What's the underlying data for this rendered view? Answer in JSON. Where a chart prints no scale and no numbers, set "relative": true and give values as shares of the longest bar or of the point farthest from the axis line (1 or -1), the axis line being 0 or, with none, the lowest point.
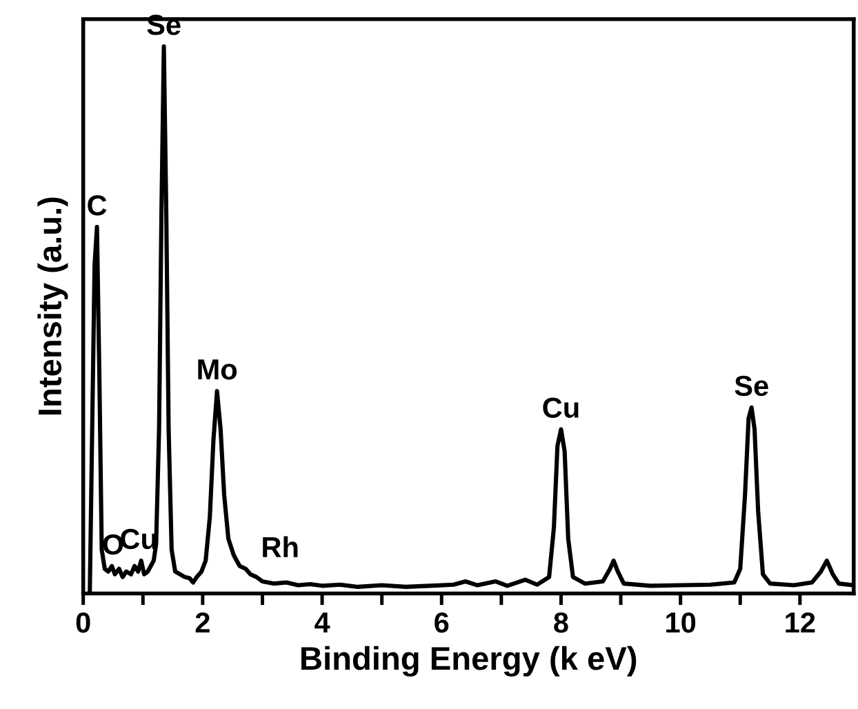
{
  "chart_data": {
    "type": "line",
    "relative": true,
    "xlabel": "Binding Energy (k eV)",
    "ylabel": "Intensity (a.u.)",
    "xlim": [
      0,
      12.9
    ],
    "xticks": [
      0,
      {
        "value": 1,
        "label": null
      },
      2,
      {
        "value": 3,
        "label": null
      },
      4,
      {
        "value": 5,
        "label": null
      },
      6,
      {
        "value": 7,
        "label": null
      },
      8,
      {
        "value": 9,
        "label": null
      },
      10,
      {
        "value": 11,
        "label": null
      },
      12
    ],
    "tick_labels": "x",
    "grid": false,
    "legend": false,
    "marker": "none",
    "line_style": "solid",
    "series": [
      {
        "color": "#000000",
        "x": [
          0.11,
          0.15,
          0.19,
          0.23,
          0.27,
          0.31,
          0.36,
          0.42,
          0.48,
          0.53,
          0.6,
          0.66,
          0.72,
          0.8,
          0.86,
          0.92,
          0.97,
          1.02,
          1.08,
          1.13,
          1.18,
          1.22,
          1.27,
          1.31,
          1.35,
          1.39,
          1.43,
          1.48,
          1.54,
          1.62,
          1.7,
          1.78,
          1.84,
          1.9,
          1.98,
          2.05,
          2.12,
          2.18,
          2.24,
          2.3,
          2.36,
          2.43,
          2.52,
          2.62,
          2.72,
          2.8,
          2.9,
          3.0,
          3.2,
          3.4,
          3.6,
          3.8,
          4.0,
          4.3,
          4.6,
          5.0,
          5.4,
          5.8,
          6.2,
          6.4,
          6.6,
          6.9,
          7.1,
          7.4,
          7.6,
          7.8,
          7.88,
          7.94,
          8.0,
          8.06,
          8.12,
          8.2,
          8.4,
          8.7,
          8.82,
          8.88,
          8.95,
          9.05,
          9.5,
          10.0,
          10.5,
          10.9,
          11.0,
          11.08,
          11.14,
          11.19,
          11.24,
          11.3,
          11.38,
          11.5,
          11.9,
          12.2,
          12.35,
          12.45,
          12.55,
          12.65,
          12.9
        ],
        "values": [
          0,
          0.3,
          0.6,
          0.67,
          0.4,
          0.08,
          0.045,
          0.04,
          0.05,
          0.035,
          0.045,
          0.03,
          0.04,
          0.035,
          0.05,
          0.04,
          0.06,
          0.035,
          0.04,
          0.05,
          0.06,
          0.09,
          0.3,
          0.7,
          1.0,
          0.7,
          0.3,
          0.08,
          0.04,
          0.035,
          0.03,
          0.028,
          0.02,
          0.03,
          0.04,
          0.06,
          0.14,
          0.28,
          0.37,
          0.3,
          0.18,
          0.1,
          0.07,
          0.05,
          0.045,
          0.035,
          0.03,
          0.022,
          0.018,
          0.02,
          0.015,
          0.017,
          0.014,
          0.016,
          0.012,
          0.015,
          0.012,
          0.014,
          0.016,
          0.022,
          0.015,
          0.022,
          0.014,
          0.025,
          0.016,
          0.03,
          0.12,
          0.27,
          0.3,
          0.26,
          0.1,
          0.03,
          0.018,
          0.022,
          0.045,
          0.06,
          0.04,
          0.018,
          0.014,
          0.015,
          0.016,
          0.02,
          0.045,
          0.18,
          0.32,
          0.34,
          0.3,
          0.15,
          0.035,
          0.018,
          0.015,
          0.02,
          0.04,
          0.06,
          0.035,
          0.018,
          0.015
        ]
      }
    ],
    "annotations": [
      {
        "text": "C",
        "x": 0.23,
        "y": 0.67
      },
      {
        "text": "O",
        "x": 0.5,
        "y": 0.05
      },
      {
        "text": "Cu",
        "x": 0.93,
        "y": 0.06
      },
      {
        "text": "Se",
        "x": 1.35,
        "y": 1.0
      },
      {
        "text": "Mo",
        "x": 2.24,
        "y": 0.37
      },
      {
        "text": "Rh",
        "x": 2.72,
        "y": 0.045
      },
      {
        "text": "Cu",
        "x": 8.0,
        "y": 0.3
      },
      {
        "text": "Se",
        "x": 11.19,
        "y": 0.34
      }
    ]
  }
}
